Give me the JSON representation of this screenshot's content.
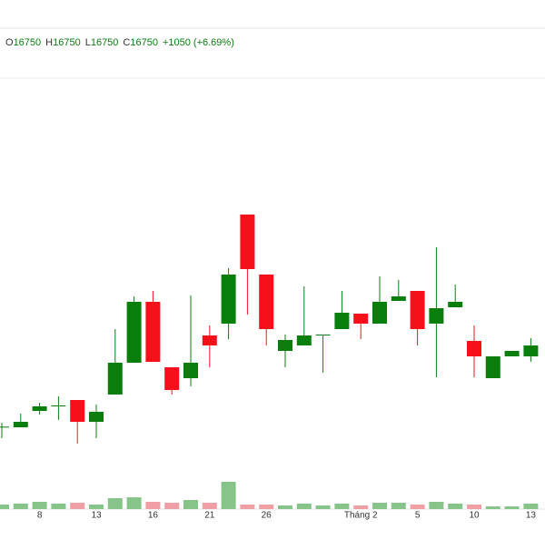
{
  "header": {
    "labels": [
      "O",
      "H",
      "L",
      "C"
    ],
    "values": [
      16750,
      16750,
      16750,
      16750
    ],
    "change": "+1050 (+6.69%)"
  },
  "chart_data": {
    "type": "candlestick",
    "categories": [
      null,
      null,
      "8",
      null,
      null,
      "13",
      null,
      null,
      "16",
      null,
      null,
      "21",
      null,
      null,
      "26",
      null,
      null,
      null,
      null,
      "Tháng 2",
      null,
      null,
      "5",
      null,
      null,
      "10",
      null,
      null,
      "13"
    ],
    "open": [
      14650,
      14650,
      14920,
      14995,
      15100,
      14740,
      15190,
      15715,
      16720,
      15640,
      15460,
      16165,
      16360,
      18160,
      17170,
      15910,
      16000,
      16165,
      16270,
      16525,
      16360,
      16735,
      16900,
      16360,
      16630,
      16075,
      15460,
      15820,
      15820
    ],
    "high": [
      14725,
      14875,
      15055,
      15160,
      15100,
      15025,
      16270,
      16810,
      16900,
      15640,
      16825,
      16330,
      17275,
      18160,
      17170,
      16180,
      16975,
      16165,
      16900,
      16525,
      17140,
      17080,
      16900,
      17620,
      17005,
      16330,
      15820,
      15910,
      16120
    ],
    "low": [
      14470,
      14650,
      14860,
      14770,
      14380,
      14470,
      15190,
      15715,
      15730,
      15190,
      15325,
      15640,
      16105,
      16510,
      16000,
      15640,
      16000,
      15550,
      16270,
      16105,
      16360,
      16735,
      16000,
      15475,
      16630,
      15475,
      15460,
      15820,
      15730
    ],
    "close": [
      14660,
      14740,
      14995,
      15010,
      14740,
      14905,
      15715,
      16720,
      15730,
      15265,
      15715,
      16000,
      17170,
      17260,
      16270,
      16090,
      16165,
      16180,
      16540,
      16360,
      16720,
      16810,
      16270,
      16615,
      16720,
      15820,
      15820,
      15910,
      16000
    ],
    "volume": [
      5,
      6,
      8,
      6,
      7,
      5,
      12,
      13,
      8,
      7,
      10,
      7,
      30,
      5,
      5,
      4,
      6,
      4,
      6,
      4,
      7,
      7,
      5,
      8,
      6,
      5,
      3,
      3,
      6
    ],
    "ylim": [
      13300,
      20425
    ],
    "vlim": [
      0,
      100
    ],
    "up_color": "#087f0d",
    "down_color": "#f5101a",
    "up_volume_color": "#86c48a",
    "down_volume_color": "#f0a0a4"
  }
}
